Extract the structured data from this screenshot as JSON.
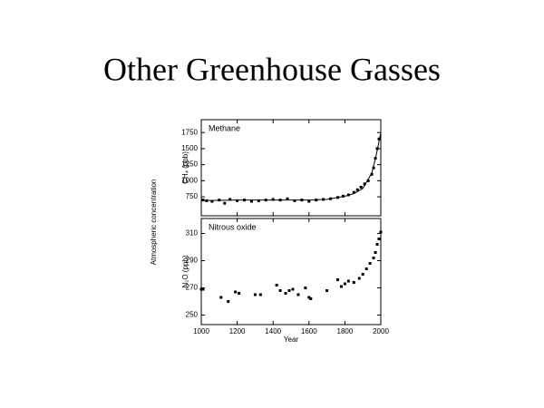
{
  "title": "Other Greenhouse Gasses",
  "ylabel": "Atmospheric concentration",
  "chart_data": [
    {
      "type": "scatter",
      "label": "Methane",
      "ylabel": "CH₄ (ppb)",
      "color": "#000000",
      "xlim": [
        1000,
        2000
      ],
      "xticks": [
        1000,
        1200,
        1400,
        1600,
        1800,
        2000
      ],
      "ylim": [
        455,
        1950
      ],
      "yticks": [
        750,
        1000,
        1250,
        1500,
        1750
      ],
      "series": [
        {
          "kind": "points",
          "x": [
            1010,
            1030,
            1060,
            1100,
            1130,
            1160,
            1200,
            1240,
            1280,
            1320,
            1360,
            1400,
            1440,
            1480,
            1520,
            1560,
            1600,
            1640,
            1680,
            1720,
            1760,
            1790,
            1820,
            1850,
            1870,
            1890,
            1910,
            1930,
            1950,
            1960,
            1970,
            1980,
            1990
          ],
          "values": [
            700,
            690,
            680,
            700,
            650,
            710,
            690,
            700,
            680,
            690,
            700,
            710,
            700,
            720,
            690,
            700,
            680,
            700,
            710,
            720,
            740,
            760,
            780,
            820,
            860,
            900,
            950,
            1000,
            1100,
            1200,
            1350,
            1500,
            1650
          ]
        },
        {
          "kind": "line",
          "x": [
            1000,
            1200,
            1400,
            1600,
            1700,
            1800,
            1850,
            1900,
            1950,
            1975,
            2000
          ],
          "values": [
            690,
            700,
            700,
            700,
            710,
            760,
            800,
            880,
            1120,
            1400,
            1750
          ]
        }
      ]
    },
    {
      "type": "scatter",
      "label": "Nitrous oxide",
      "ylabel": "N₂O (ppb)",
      "xlabel": "Year",
      "color": "#000000",
      "xlim": [
        1000,
        2000
      ],
      "xticks": [
        1000,
        1200,
        1400,
        1600,
        1800,
        2000
      ],
      "ylim": [
        243,
        321
      ],
      "yticks": [
        250,
        270,
        290,
        310
      ],
      "series": [
        {
          "kind": "points",
          "x": [
            1000,
            1010,
            1110,
            1150,
            1190,
            1210,
            1300,
            1330,
            1420,
            1440,
            1470,
            1490,
            1510,
            1540,
            1580,
            1600,
            1610,
            1700,
            1760,
            1780,
            1800,
            1820,
            1850,
            1880,
            1900,
            1920,
            1940,
            1960,
            1970,
            1980,
            1990,
            2000
          ],
          "values": [
            269,
            269,
            263,
            260,
            267,
            266,
            265,
            265,
            272,
            268,
            266,
            268,
            269,
            265,
            270,
            263,
            262,
            268,
            276,
            271,
            273,
            275,
            274,
            277,
            280,
            284,
            288,
            292,
            296,
            302,
            306,
            311
          ]
        }
      ]
    }
  ]
}
